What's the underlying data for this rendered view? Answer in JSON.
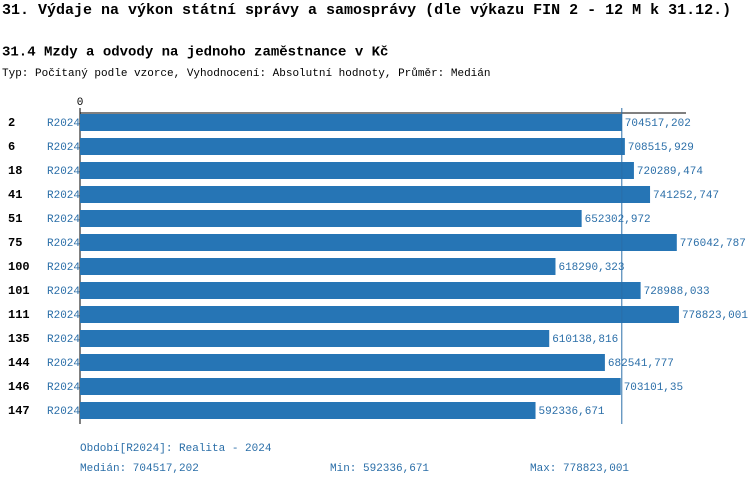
{
  "title": "31. Výdaje na výkon státní správy a samosprávy (dle výkazu FIN 2 - 12 M k 31.12.)",
  "chart_data": {
    "type": "bar",
    "orientation": "horizontal",
    "title": "31.4 Mzdy a odvody na jednoho zaměstnance v Kč",
    "subtitle": "Typ: Počítaný podle vzorce, Vyhodnocení: Absolutní hodnoty, Průměr: Medián",
    "categories": [
      "2",
      "6",
      "18",
      "41",
      "51",
      "75",
      "100",
      "101",
      "111",
      "135",
      "144",
      "146",
      "147"
    ],
    "series": [
      {
        "name": "R2024",
        "color": "#2675b5",
        "values": [
          704517.202,
          708515.929,
          720289.474,
          741252.747,
          652302.972,
          776042.787,
          618290.323,
          728988.033,
          778823.001,
          610138.816,
          682541.777,
          703101.35,
          592336.671
        ],
        "value_labels": [
          "704517,202",
          "708515,929",
          "720289,474",
          "741252,747",
          "652302,972",
          "776042,787",
          "618290,323",
          "728988,033",
          "778823,001",
          "610138,816",
          "682541,777",
          "703101,35",
          "592336,671"
        ]
      }
    ],
    "xlim": [
      0,
      788000
    ],
    "xticks": [
      0
    ],
    "median": 704517.202,
    "footer": {
      "period": "Období[R2024]: Realita - 2024",
      "median": "Medián: 704517,202",
      "min": "Min: 592336,671",
      "max": "Max: 778823,001"
    }
  }
}
